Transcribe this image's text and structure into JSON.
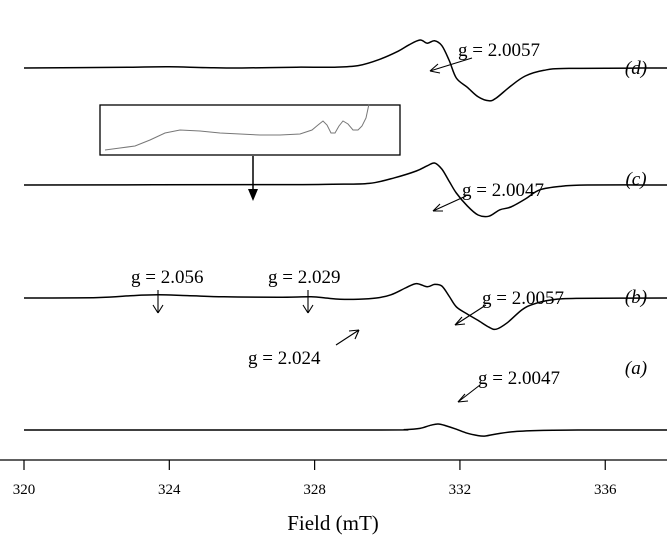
{
  "chart_data": {
    "type": "line",
    "xlabel": "Field (mT)",
    "ylabel": "",
    "xlim": [
      320,
      337.7
    ],
    "x_ticks": [
      320,
      324,
      328,
      332,
      336
    ],
    "x_tick_labels": [
      "320",
      "324",
      "328",
      "332",
      "336"
    ],
    "series": [
      {
        "name": "(a)",
        "shape": [
          [
            320,
            0
          ],
          [
            329.5,
            0
          ],
          [
            330.5,
            0.01
          ],
          [
            330.9,
            0.04
          ],
          [
            331.2,
            0.12
          ],
          [
            331.4,
            0.15
          ],
          [
            331.6,
            0.11
          ],
          [
            331.9,
            0.02
          ],
          [
            332.2,
            -0.08
          ],
          [
            332.5,
            -0.14
          ],
          [
            332.7,
            -0.15
          ],
          [
            333,
            -0.1
          ],
          [
            333.5,
            -0.04
          ],
          [
            334.3,
            -0.01
          ],
          [
            335.5,
            0
          ],
          [
            337.7,
            0
          ]
        ]
      },
      {
        "name": "(b)",
        "shape": [
          [
            320,
            0
          ],
          [
            322,
            0.01
          ],
          [
            323,
            0.06
          ],
          [
            323.7,
            0.08
          ],
          [
            324.5,
            0.06
          ],
          [
            325.5,
            0.03
          ],
          [
            327,
            0.02
          ],
          [
            327.9,
            0.03
          ],
          [
            328.3,
            0
          ],
          [
            328.7,
            -0.03
          ],
          [
            329.2,
            -0.03
          ],
          [
            329.7,
            0
          ],
          [
            330.1,
            0.08
          ],
          [
            330.5,
            0.25
          ],
          [
            330.8,
            0.36
          ],
          [
            331.1,
            0.28
          ],
          [
            331.3,
            0.34
          ],
          [
            331.5,
            0.3
          ],
          [
            331.7,
            0.05
          ],
          [
            331.9,
            -0.22
          ],
          [
            332.2,
            -0.4
          ],
          [
            332.5,
            -0.56
          ],
          [
            332.8,
            -0.73
          ],
          [
            333,
            -0.78
          ],
          [
            333.3,
            -0.62
          ],
          [
            333.7,
            -0.3
          ],
          [
            334,
            -0.16
          ],
          [
            334.5,
            -0.05
          ],
          [
            335.2,
            -0.01
          ],
          [
            337.7,
            0
          ]
        ]
      },
      {
        "name": "(c)",
        "shape": [
          [
            320,
            0
          ],
          [
            327,
            0.01
          ],
          [
            328.5,
            0.02
          ],
          [
            329.5,
            0.04
          ],
          [
            330.2,
            0.18
          ],
          [
            330.8,
            0.35
          ],
          [
            331.1,
            0.48
          ],
          [
            331.3,
            0.55
          ],
          [
            331.5,
            0.4
          ],
          [
            331.7,
            0.1
          ],
          [
            331.9,
            -0.2
          ],
          [
            332.2,
            -0.52
          ],
          [
            332.5,
            -0.75
          ],
          [
            332.8,
            -0.78
          ],
          [
            333.1,
            -0.62
          ],
          [
            333.4,
            -0.55
          ],
          [
            333.8,
            -0.35
          ],
          [
            334.2,
            -0.12
          ],
          [
            334.8,
            -0.03
          ],
          [
            335.5,
            0
          ],
          [
            337.7,
            0
          ]
        ]
      },
      {
        "name": "(d)",
        "shape": [
          [
            320,
            0
          ],
          [
            323,
            0.02
          ],
          [
            324,
            0.03
          ],
          [
            325,
            0.01
          ],
          [
            326,
            0
          ],
          [
            327.5,
            0.02
          ],
          [
            328.5,
            0.02
          ],
          [
            329.2,
            0.06
          ],
          [
            329.8,
            0.22
          ],
          [
            330.3,
            0.42
          ],
          [
            330.6,
            0.58
          ],
          [
            330.9,
            0.7
          ],
          [
            331.1,
            0.62
          ],
          [
            331.3,
            0.68
          ],
          [
            331.5,
            0.56
          ],
          [
            331.7,
            0.2
          ],
          [
            331.9,
            -0.25
          ],
          [
            332.2,
            -0.48
          ],
          [
            332.5,
            -0.72
          ],
          [
            332.8,
            -0.82
          ],
          [
            333,
            -0.75
          ],
          [
            333.4,
            -0.45
          ],
          [
            333.8,
            -0.2
          ],
          [
            334.3,
            -0.06
          ],
          [
            335,
            -0.01
          ],
          [
            337.7,
            0
          ]
        ]
      }
    ],
    "annotations": [
      {
        "series": "(d)",
        "text": "g = 2.0057"
      },
      {
        "series": "(c)",
        "text": "g = 2.0047"
      },
      {
        "series": "(b)",
        "text": "g = 2.056"
      },
      {
        "series": "(b)",
        "text": "g = 2.029"
      },
      {
        "series": "(b)",
        "text": "g = 2.024"
      },
      {
        "series": "(b)",
        "text": "g = 2.0057"
      },
      {
        "series": "(a)",
        "text": "g = 2.0047"
      }
    ],
    "inset": {
      "description_series": "(c)",
      "shows": "expanded low-field region"
    }
  }
}
